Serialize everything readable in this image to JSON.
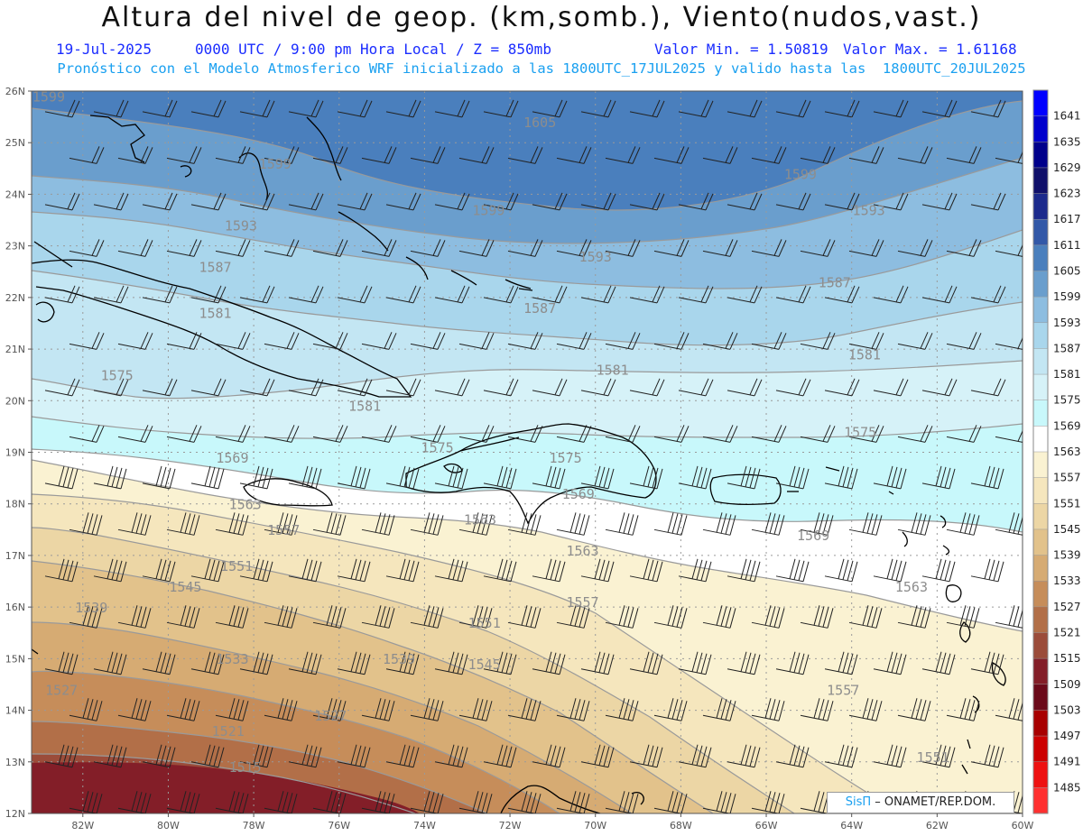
{
  "title": "Altura del nivel de geop. (km,somb.), Viento(nudos,vast.)",
  "subtitle": {
    "date": "19-Jul-2025",
    "time": "0000 UTC / 9:00 pm Hora Local / Z = 850mb",
    "min": "Valor Min. = 1.50819",
    "max": "Valor Max. = 1.61168"
  },
  "subtitle2": "Pronóstico con el Modelo Atmosferico WRF inicializado a las 1800UTC_17JUL2025 y valido hasta las  1800UTC_20JUL2025",
  "credit": {
    "brand": "SisΠ",
    "text": " – ONAMET/REP.DOM."
  },
  "lat_labels": [
    "26N",
    "25N",
    "24N",
    "23N",
    "22N",
    "21N",
    "20N",
    "19N",
    "18N",
    "17N",
    "16N",
    "15N",
    "14N",
    "13N",
    "12N"
  ],
  "lon_labels": [
    "82W",
    "80W",
    "78W",
    "76W",
    "74W",
    "72W",
    "70W",
    "68W",
    "66W",
    "64W",
    "62W",
    "60W"
  ],
  "colorbar": {
    "labels": [
      "1641",
      "1635",
      "1629",
      "1623",
      "1617",
      "1611",
      "1605",
      "1599",
      "1593",
      "1587",
      "1581",
      "1575",
      "1569",
      "1563",
      "1557",
      "1551",
      "1545",
      "1539",
      "1533",
      "1527",
      "1521",
      "1515",
      "1509",
      "1503",
      "1497",
      "1491",
      "1485"
    ],
    "colors": [
      "#0000ff",
      "#0000cd",
      "#00008b",
      "#10106a",
      "#1c2a8c",
      "#3258a8",
      "#4a7fbd",
      "#6a9ecd",
      "#8dbde0",
      "#a9d6ec",
      "#c3e6f3",
      "#d6f2f8",
      "#c8f8fb",
      "#ffffff",
      "#faf2d2",
      "#f5e6bd",
      "#ecd6a5",
      "#e2c28b",
      "#d6ab73",
      "#c68d5a",
      "#b26f48",
      "#9b4c3a",
      "#831e28",
      "#6b0a1a",
      "#a80000",
      "#cc0000",
      "#ee1111",
      "#ff3030"
    ]
  },
  "contour_labels": [
    {
      "text": "1599",
      "lon": -82.8,
      "lat": 25.8
    },
    {
      "text": "1605",
      "lon": -71.3,
      "lat": 25.3
    },
    {
      "text": "1599",
      "lon": -77.5,
      "lat": 24.5
    },
    {
      "text": "1599",
      "lon": -65.2,
      "lat": 24.3
    },
    {
      "text": "1599",
      "lon": -72.5,
      "lat": 23.6
    },
    {
      "text": "1593",
      "lon": -78.3,
      "lat": 23.3
    },
    {
      "text": "1593",
      "lon": -63.6,
      "lat": 23.6
    },
    {
      "text": "1593",
      "lon": -70.0,
      "lat": 22.7
    },
    {
      "text": "1587",
      "lon": -78.9,
      "lat": 22.5
    },
    {
      "text": "1587",
      "lon": -64.4,
      "lat": 22.2
    },
    {
      "text": "1587",
      "lon": -71.3,
      "lat": 21.7
    },
    {
      "text": "1581",
      "lon": -78.9,
      "lat": 21.6
    },
    {
      "text": "1581",
      "lon": -69.6,
      "lat": 20.5
    },
    {
      "text": "1581",
      "lon": -63.7,
      "lat": 20.8
    },
    {
      "text": "1575",
      "lon": -81.2,
      "lat": 20.4
    },
    {
      "text": "1581",
      "lon": -75.4,
      "lat": 19.8
    },
    {
      "text": "1575",
      "lon": -73.7,
      "lat": 19.0
    },
    {
      "text": "1575",
      "lon": -63.8,
      "lat": 19.3
    },
    {
      "text": "1575",
      "lon": -70.7,
      "lat": 18.8
    },
    {
      "text": "1569",
      "lon": -78.5,
      "lat": 18.8
    },
    {
      "text": "1569",
      "lon": -70.4,
      "lat": 18.1
    },
    {
      "text": "1569",
      "lon": -64.9,
      "lat": 17.3
    },
    {
      "text": "1563",
      "lon": -78.2,
      "lat": 17.9
    },
    {
      "text": "1563",
      "lon": -72.7,
      "lat": 17.6
    },
    {
      "text": "1563",
      "lon": -70.3,
      "lat": 17.0
    },
    {
      "text": "1563",
      "lon": -62.6,
      "lat": 16.3
    },
    {
      "text": "1557",
      "lon": -77.3,
      "lat": 17.4
    },
    {
      "text": "1557",
      "lon": -70.3,
      "lat": 16.0
    },
    {
      "text": "1557",
      "lon": -64.2,
      "lat": 14.3
    },
    {
      "text": "1551",
      "lon": -78.4,
      "lat": 16.7
    },
    {
      "text": "1551",
      "lon": -72.6,
      "lat": 15.6
    },
    {
      "text": "1551",
      "lon": -62.1,
      "lat": 13.0
    },
    {
      "text": "1545",
      "lon": -79.6,
      "lat": 16.3
    },
    {
      "text": "1545",
      "lon": -72.6,
      "lat": 14.8
    },
    {
      "text": "1539",
      "lon": -81.8,
      "lat": 15.9
    },
    {
      "text": "1539",
      "lon": -74.6,
      "lat": 14.9
    },
    {
      "text": "1533",
      "lon": -78.5,
      "lat": 14.9
    },
    {
      "text": "1527",
      "lon": -82.5,
      "lat": 14.3
    },
    {
      "text": "1527",
      "lon": -76.2,
      "lat": 13.8
    },
    {
      "text": "1521",
      "lon": -78.6,
      "lat": 13.5
    },
    {
      "text": "1515",
      "lon": -78.2,
      "lat": 12.8
    }
  ]
}
